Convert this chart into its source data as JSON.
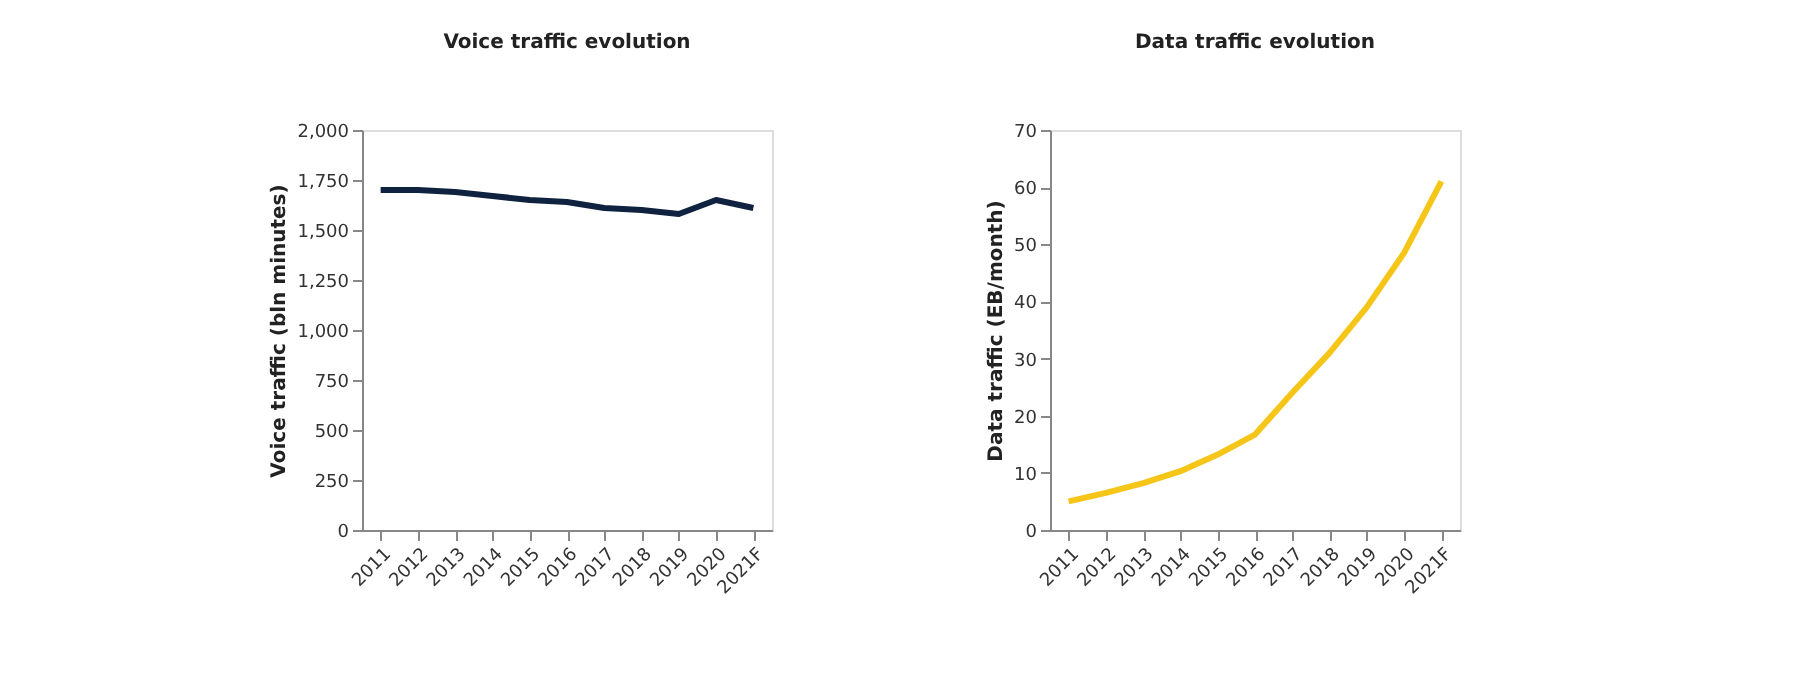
{
  "chart_data": [
    {
      "type": "line",
      "title": "Voice traffic evolution",
      "ylabel": "Voice traffic (bln minutes)",
      "categories": [
        "2011",
        "2012",
        "2013",
        "2014",
        "2015",
        "2016",
        "2017",
        "2018",
        "2019",
        "2020",
        "2021F"
      ],
      "series": [
        {
          "color": "#0f2340",
          "values": [
            1700,
            1700,
            1690,
            1670,
            1650,
            1640,
            1610,
            1600,
            1580,
            1650,
            1610
          ]
        }
      ],
      "ylim": [
        0,
        2000
      ],
      "yticks": [
        0,
        {
          "value": 250,
          "label": "250"
        },
        {
          "value": 500,
          "label": "500"
        },
        {
          "value": 750,
          "label": "750"
        },
        {
          "value": 1000,
          "label": "1,000"
        },
        {
          "value": 1250,
          "label": "1,250"
        },
        {
          "value": 1500,
          "label": "1,500"
        },
        {
          "value": 1750,
          "label": "1,750"
        },
        {
          "value": 2000,
          "label": "2,000"
        }
      ],
      "grid": false,
      "marker": "none",
      "line_style": "solid"
    },
    {
      "type": "line",
      "title": "Data traffic evolution",
      "ylabel": "Data traffic (EB/month)",
      "categories": [
        "2011",
        "2012",
        "2013",
        "2014",
        "2015",
        "2016",
        "2017",
        "2018",
        "2019",
        "2020",
        "2021F"
      ],
      "series": [
        {
          "color": "#f5c518",
          "values": [
            5,
            6.5,
            8.2,
            10.3,
            13.2,
            16.7,
            24,
            31,
            39,
            48.5,
            61
          ]
        }
      ],
      "ylim": [
        0,
        70
      ],
      "yticks": [
        0,
        10,
        20,
        30,
        40,
        50,
        60,
        70
      ],
      "grid": false,
      "marker": "none",
      "line_style": "solid"
    }
  ]
}
